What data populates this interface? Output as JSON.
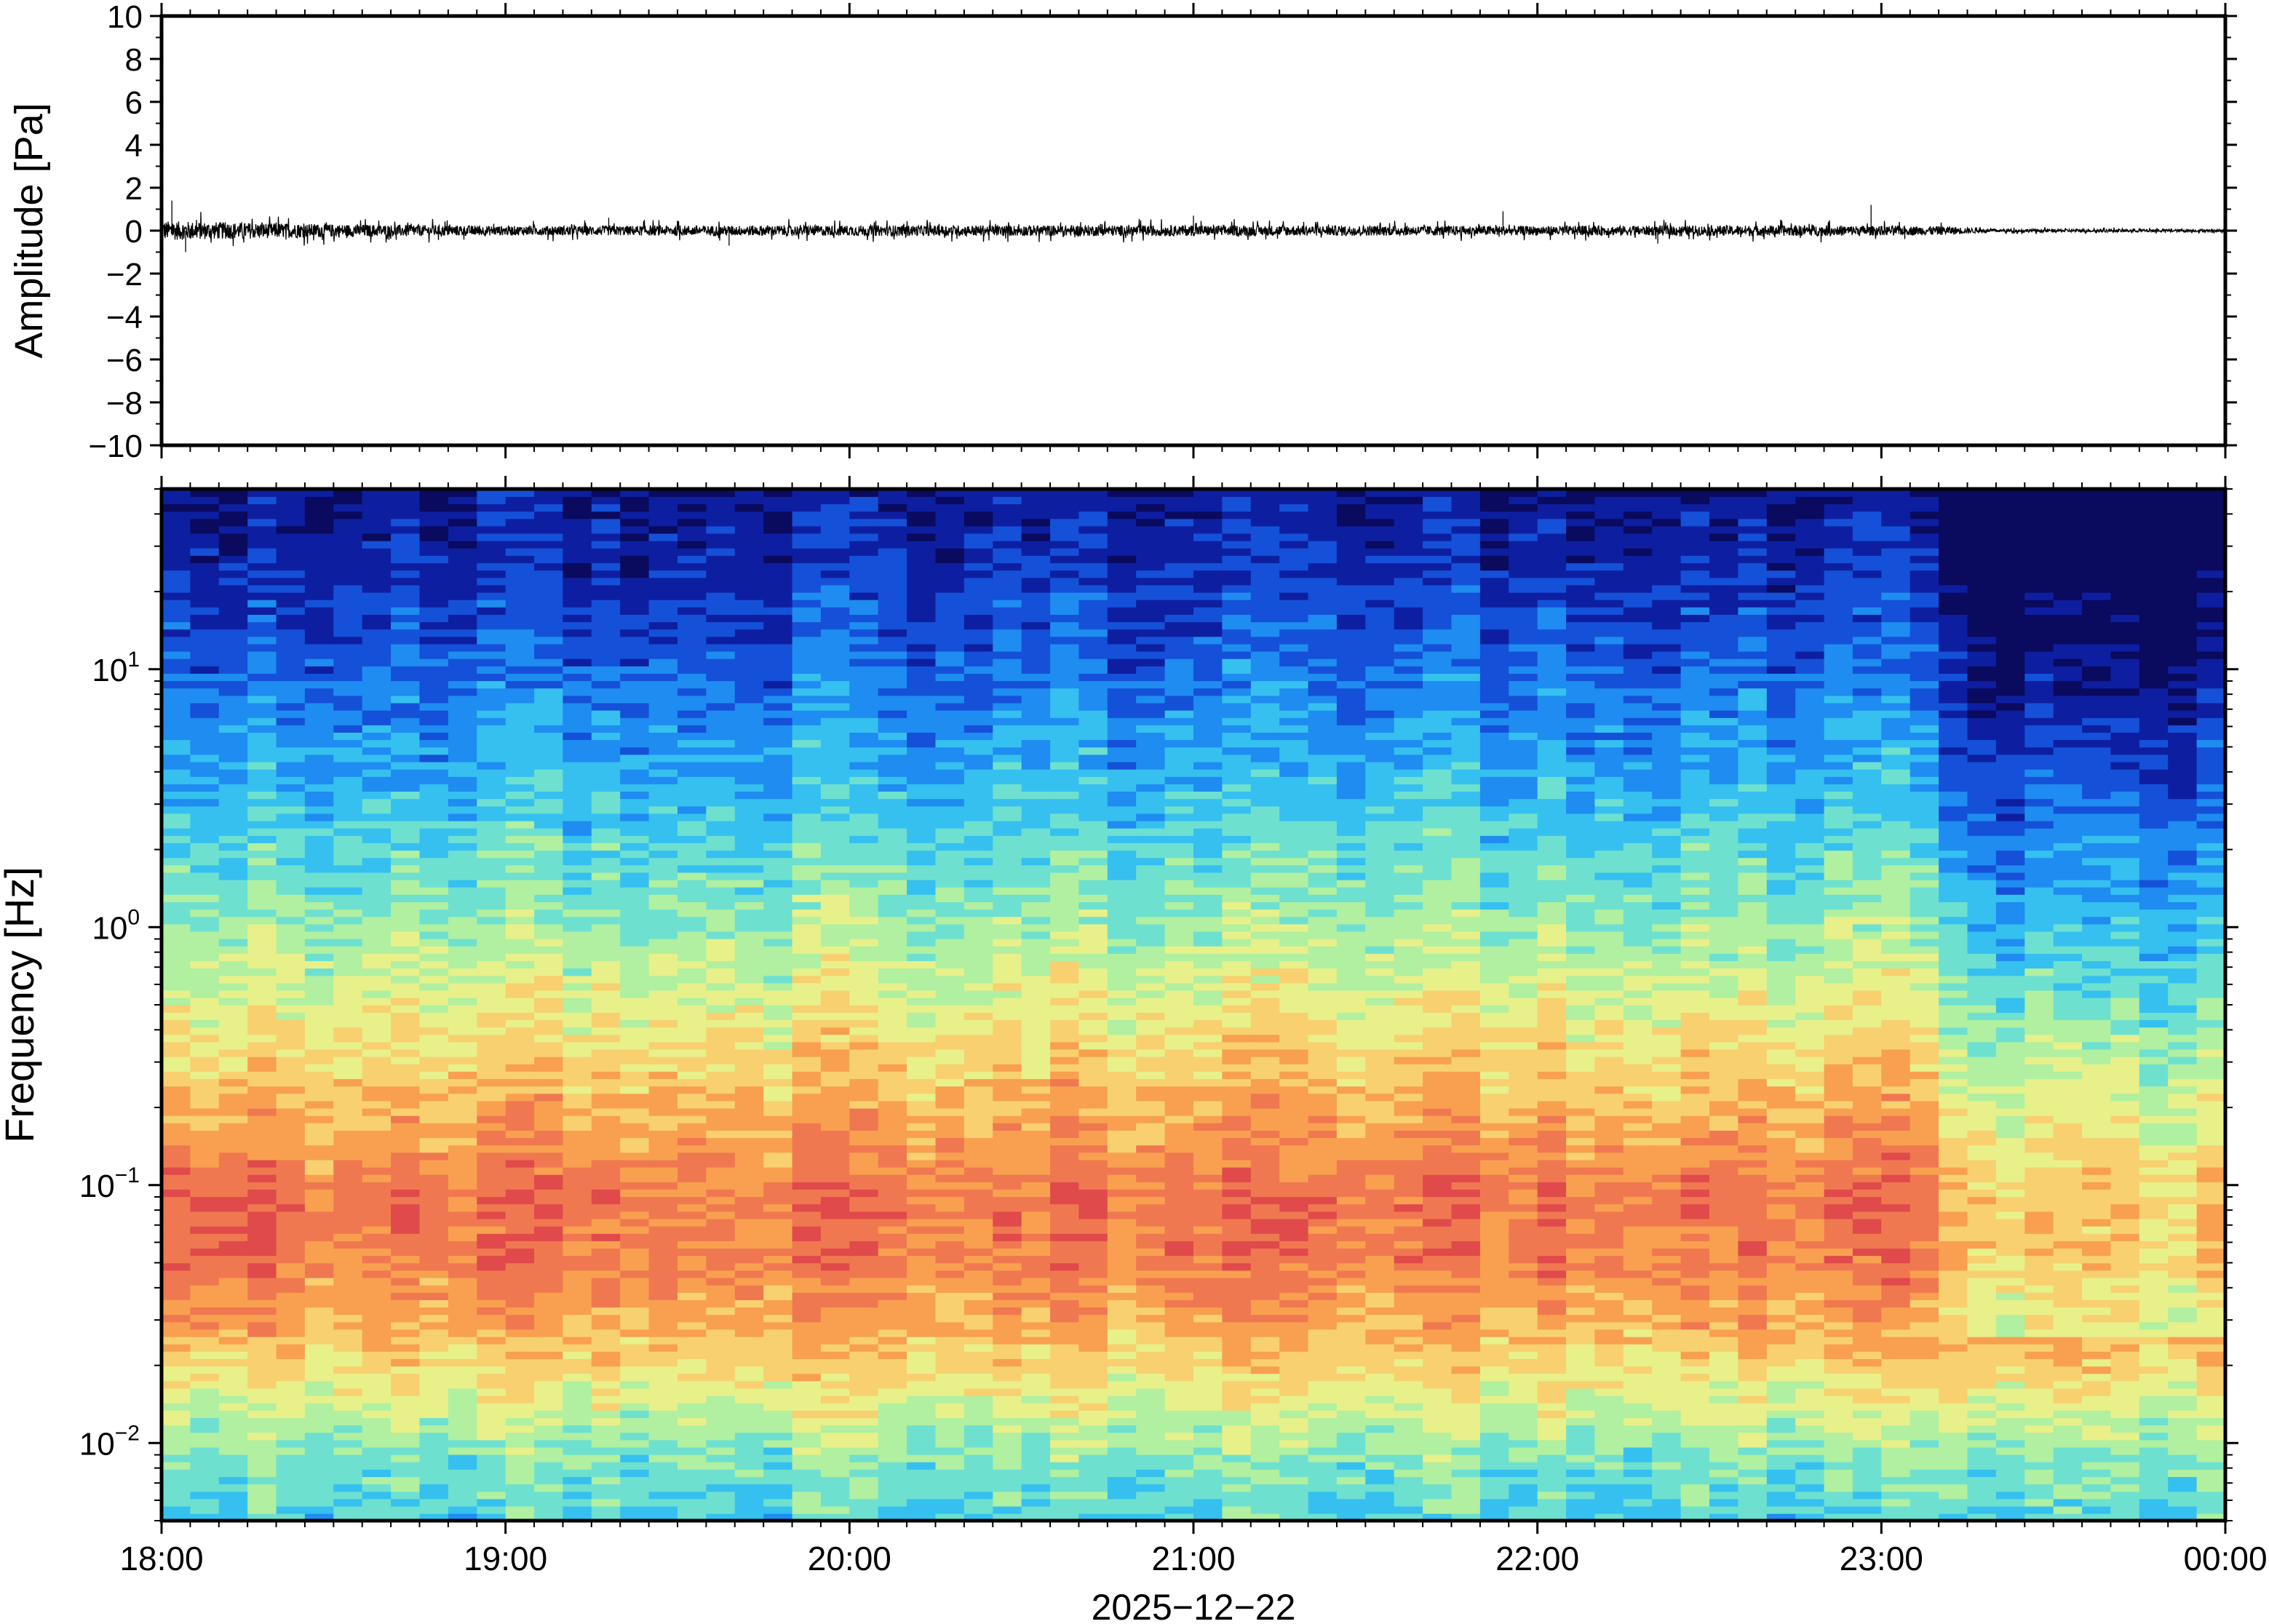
{
  "chart_data": [
    {
      "type": "line",
      "panel": "waveform",
      "ylabel": "Amplitude [Pa]",
      "ylim": [
        -10,
        10
      ],
      "yticks": [
        10,
        8,
        6,
        4,
        2,
        0,
        -2,
        -4,
        -6,
        -8,
        -10
      ],
      "ytick_labels": [
        "10",
        "8",
        "6",
        "4",
        "2",
        "0",
        "−2",
        "−4",
        "−6",
        "−8",
        "−10"
      ],
      "x_hours": [
        18,
        24
      ],
      "noise_envelope_pa": [
        {
          "x": 18.0,
          "amp": 0.45
        },
        {
          "x": 18.5,
          "amp": 0.3
        },
        {
          "x": 19.0,
          "amp": 0.22
        },
        {
          "x": 20.0,
          "amp": 0.25
        },
        {
          "x": 21.0,
          "amp": 0.25
        },
        {
          "x": 22.0,
          "amp": 0.22
        },
        {
          "x": 22.8,
          "amp": 0.25
        },
        {
          "x": 23.2,
          "amp": 0.2
        },
        {
          "x": 23.3,
          "amp": 0.08
        },
        {
          "x": 24.0,
          "amp": 0.06
        }
      ],
      "spikes_pa": [
        {
          "x": 18.03,
          "y": 1.4
        },
        {
          "x": 18.07,
          "y": -1.0
        },
        {
          "x": 19.3,
          "y": 0.6
        },
        {
          "x": 19.65,
          "y": -0.7
        },
        {
          "x": 21.0,
          "y": 0.7
        },
        {
          "x": 21.9,
          "y": 0.9
        },
        {
          "x": 22.35,
          "y": -0.6
        },
        {
          "x": 22.97,
          "y": 1.2
        }
      ],
      "line_color": "#000000"
    },
    {
      "type": "heatmap",
      "panel": "spectrogram",
      "ylabel": "Frequency [Hz]",
      "yscale": "log",
      "ylim": [
        0.005,
        50
      ],
      "yticks": [
        0.01,
        0.1,
        1,
        10
      ],
      "ytick_labels": [
        {
          "base": "10",
          "exp": "−2"
        },
        {
          "base": "10",
          "exp": "−1"
        },
        {
          "base": "10",
          "exp": "0"
        },
        {
          "base": "10",
          "exp": "1"
        }
      ],
      "xlabel": "2025−12−22",
      "xlim_hours": [
        18,
        24
      ],
      "xtick_hours": [
        18,
        19,
        20,
        21,
        22,
        23,
        24
      ],
      "xtick_labels": [
        "18:00",
        "19:00",
        "20:00",
        "21:00",
        "22:00",
        "23:00",
        "00:00"
      ],
      "colormap": [
        "#0a0a5e",
        "#0d1fa0",
        "#1550d8",
        "#1e8cf0",
        "#35c0f0",
        "#6ee0d0",
        "#b0f0a0",
        "#e8f08a",
        "#f8d070",
        "#f8a050",
        "#f07850",
        "#e04a4a"
      ],
      "power_profile_vs_log10_freq": [
        {
          "log_f": -2.3,
          "level": 0.42
        },
        {
          "log_f": -2.05,
          "level": 0.5
        },
        {
          "log_f": -1.8,
          "level": 0.64
        },
        {
          "log_f": -1.55,
          "level": 0.77
        },
        {
          "log_f": -1.3,
          "level": 0.86
        },
        {
          "log_f": -1.05,
          "level": 0.88
        },
        {
          "log_f": -0.8,
          "level": 0.8
        },
        {
          "log_f": -0.5,
          "level": 0.7
        },
        {
          "log_f": -0.2,
          "level": 0.6
        },
        {
          "log_f": 0.1,
          "level": 0.5
        },
        {
          "log_f": 0.45,
          "level": 0.4
        },
        {
          "log_f": 0.8,
          "level": 0.3
        },
        {
          "log_f": 1.2,
          "level": 0.2
        },
        {
          "log_f": 1.7,
          "level": 0.1
        }
      ],
      "quiet_interval_hours": [
        23.2,
        24
      ]
    }
  ]
}
